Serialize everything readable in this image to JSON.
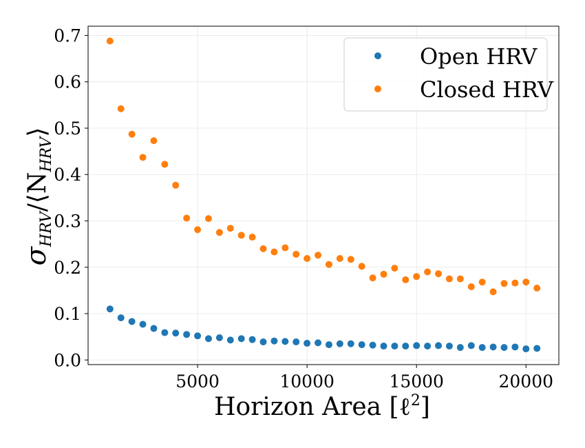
{
  "chart_data": {
    "type": "scatter",
    "title": "",
    "xlabel": "Horizon Area [ℓ²]",
    "ylabel": "σHRV/⟨NHRV⟩",
    "ylabel_parts": {
      "sym": "σ",
      "sub1": "HRV",
      "mid": "/⟨N",
      "sub2": "HRV",
      "end": "⟩"
    },
    "xlabel_parts": {
      "main": "Horizon Area [ℓ",
      "sup": "2",
      "end": "]"
    },
    "xlim": [
      0,
      21500
    ],
    "ylim": [
      -0.01,
      0.72
    ],
    "xticks": [
      5000,
      10000,
      15000,
      20000
    ],
    "xtick_labels": [
      "5000",
      "10000",
      "15000",
      "20000"
    ],
    "yticks": [
      0.0,
      0.1,
      0.2,
      0.3,
      0.4,
      0.5,
      0.6,
      0.7
    ],
    "ytick_labels": [
      "0.0",
      "0.1",
      "0.2",
      "0.3",
      "0.4",
      "0.5",
      "0.6",
      "0.7"
    ],
    "grid": true,
    "legend": {
      "position": "top-right"
    },
    "series": [
      {
        "name": "Open HRV",
        "color": "#1f77b4",
        "x": [
          1000,
          1500,
          2000,
          2500,
          3000,
          3500,
          4000,
          4500,
          5000,
          5500,
          6000,
          6500,
          7000,
          7500,
          8000,
          8500,
          9000,
          9500,
          10000,
          10500,
          11000,
          11500,
          12000,
          12500,
          13000,
          13500,
          14000,
          14500,
          15000,
          15500,
          16000,
          16500,
          17000,
          17500,
          18000,
          18500,
          19000,
          19500,
          20000,
          20500
        ],
        "y": [
          0.11,
          0.091,
          0.083,
          0.077,
          0.068,
          0.059,
          0.058,
          0.055,
          0.052,
          0.046,
          0.048,
          0.043,
          0.046,
          0.044,
          0.039,
          0.041,
          0.04,
          0.039,
          0.036,
          0.037,
          0.033,
          0.035,
          0.035,
          0.033,
          0.032,
          0.03,
          0.03,
          0.03,
          0.031,
          0.03,
          0.031,
          0.03,
          0.027,
          0.031,
          0.027,
          0.028,
          0.027,
          0.028,
          0.024,
          0.025
        ]
      },
      {
        "name": "Closed HRV",
        "color": "#ff7f0e",
        "x": [
          1000,
          1500,
          2000,
          2500,
          3000,
          3500,
          4000,
          4500,
          5000,
          5500,
          6000,
          6500,
          7000,
          7500,
          8000,
          8500,
          9000,
          9500,
          10000,
          10500,
          11000,
          11500,
          12000,
          12500,
          13000,
          13500,
          14000,
          14500,
          15000,
          15500,
          16000,
          16500,
          17000,
          17500,
          18000,
          18500,
          19000,
          19500,
          20000,
          20500
        ],
        "y": [
          0.688,
          0.542,
          0.487,
          0.437,
          0.473,
          0.422,
          0.377,
          0.306,
          0.281,
          0.305,
          0.275,
          0.284,
          0.269,
          0.265,
          0.24,
          0.233,
          0.242,
          0.228,
          0.219,
          0.226,
          0.206,
          0.219,
          0.217,
          0.202,
          0.177,
          0.185,
          0.198,
          0.173,
          0.18,
          0.19,
          0.186,
          0.175,
          0.175,
          0.158,
          0.168,
          0.147,
          0.165,
          0.166,
          0.168,
          0.155
        ]
      }
    ]
  }
}
